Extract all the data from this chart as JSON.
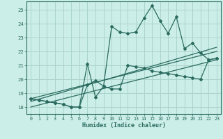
{
  "title": "",
  "xlabel": "Humidex (Indice chaleur)",
  "ylabel": "",
  "xlim": [
    -0.5,
    23.5
  ],
  "ylim": [
    17.5,
    25.6
  ],
  "xticks": [
    0,
    1,
    2,
    3,
    4,
    5,
    6,
    7,
    8,
    9,
    10,
    11,
    12,
    13,
    14,
    15,
    16,
    17,
    18,
    19,
    20,
    21,
    22,
    23
  ],
  "yticks": [
    18,
    19,
    20,
    21,
    22,
    23,
    24,
    25
  ],
  "bg_color": "#cceee8",
  "grid_color": "#aad4cc",
  "line_color": "#2a6b60",
  "series1_x": [
    0,
    1,
    2,
    3,
    4,
    5,
    6,
    7,
    8,
    9,
    10,
    11,
    12,
    13,
    14,
    15,
    16,
    17,
    18,
    19,
    20,
    21,
    22,
    23
  ],
  "series1_y": [
    18.6,
    18.5,
    18.4,
    18.3,
    18.2,
    18.0,
    18.0,
    19.6,
    19.9,
    19.5,
    19.3,
    19.3,
    21.0,
    20.9,
    20.8,
    20.6,
    20.5,
    20.4,
    20.3,
    20.2,
    20.1,
    20.0,
    21.4,
    21.5
  ],
  "series2_x": [
    0,
    1,
    2,
    3,
    4,
    5,
    6,
    7,
    8,
    9,
    10,
    11,
    12,
    13,
    14,
    15,
    16,
    17,
    18,
    19,
    20,
    21,
    22,
    23
  ],
  "series2_y": [
    18.6,
    18.5,
    18.4,
    18.3,
    18.2,
    18.0,
    18.0,
    21.1,
    18.7,
    19.5,
    23.8,
    23.4,
    23.3,
    23.4,
    24.4,
    25.3,
    24.2,
    23.3,
    24.5,
    22.2,
    22.6,
    21.9,
    21.4,
    21.5
  ],
  "trend1_x": [
    0,
    23
  ],
  "trend1_y": [
    18.6,
    22.0
  ],
  "trend2_x": [
    0,
    23
  ],
  "trend2_y": [
    18.4,
    22.3
  ],
  "trend3_x": [
    0,
    23
  ],
  "trend3_y": [
    18.0,
    21.4
  ]
}
